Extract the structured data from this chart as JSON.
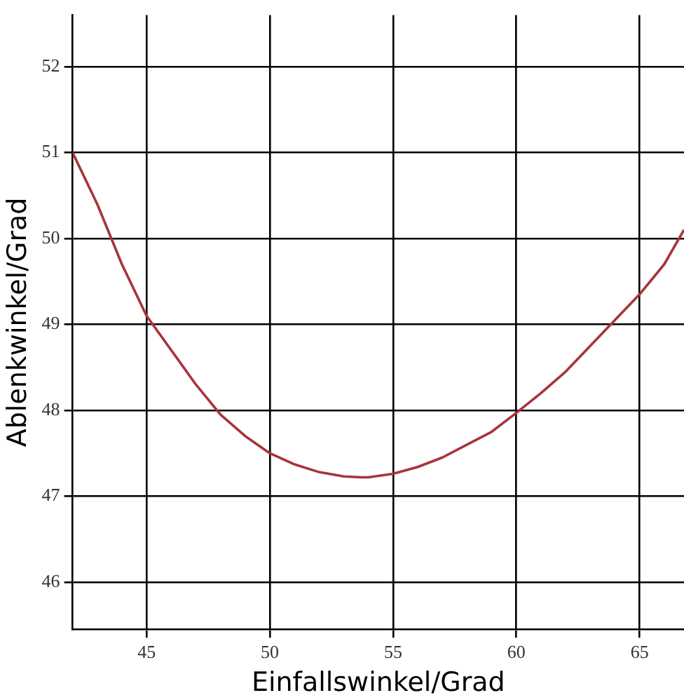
{
  "chart_data": {
    "type": "line",
    "xlabel": "Einfallswinkel/Grad",
    "ylabel": "Ablenkwinkel/Grad",
    "x": [
      42,
      43,
      44,
      45,
      46,
      47,
      48,
      49,
      50,
      51,
      52,
      53,
      53.7,
      54,
      55,
      56,
      57,
      58,
      59,
      60,
      61,
      62,
      63,
      64,
      65,
      66,
      66.8
    ],
    "series": [
      {
        "color": "#a8343c",
        "values": [
          51,
          50.4,
          49.7,
          49.1,
          48.7,
          48.3,
          47.95,
          47.7,
          47.5,
          47.37,
          47.28,
          47.23,
          47.22,
          47.22,
          47.26,
          47.34,
          47.45,
          47.6,
          47.75,
          47.97,
          48.2,
          48.45,
          48.75,
          49.05,
          49.35,
          49.7,
          50.1
        ]
      }
    ],
    "xlim": [
      42,
      66.8
    ],
    "xticks": [
      45,
      50,
      55,
      60,
      65
    ],
    "ylim": [
      45.45,
      52.6
    ],
    "yticks": [
      46,
      47,
      48,
      49,
      50,
      51,
      52
    ],
    "grid": true,
    "legend": false,
    "marker": "none",
    "line_style": "solid"
  }
}
